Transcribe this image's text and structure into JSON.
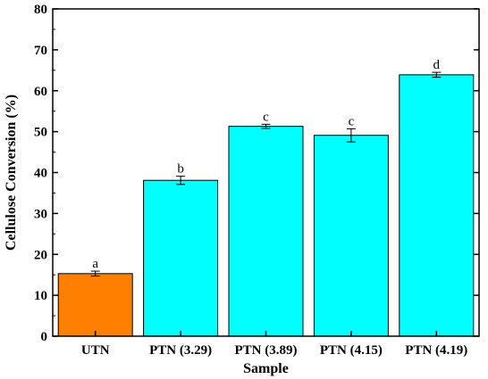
{
  "chart_data": {
    "type": "bar",
    "xlabel": "Sample",
    "ylabel": "Cellulose Conversion (%)",
    "ylim": [
      0,
      80
    ],
    "yticks": [
      0,
      10,
      20,
      30,
      40,
      50,
      60,
      70,
      80
    ],
    "grid": false,
    "legend": "none",
    "categories": [
      "UTN",
      "PTN (3.29)",
      "PTN (3.89)",
      "PTN (4.15)",
      "PTN (4.19)"
    ],
    "values": [
      15.3,
      38.1,
      51.3,
      49.1,
      63.9
    ],
    "errors": [
      0.6,
      1.0,
      0.5,
      1.6,
      0.6
    ],
    "significance_labels": [
      "a",
      "b",
      "c",
      "c",
      "d"
    ],
    "colors": [
      "#FF7F00",
      "#00FFFF",
      "#00FFFF",
      "#00FFFF",
      "#00FFFF"
    ],
    "stroke_color": "#000000"
  }
}
